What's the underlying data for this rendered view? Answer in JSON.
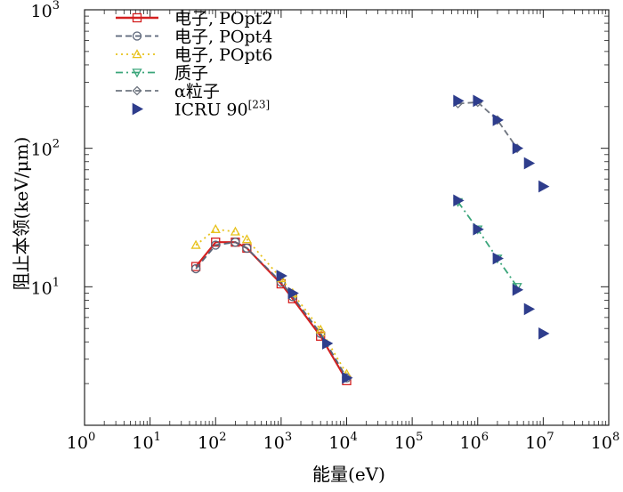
{
  "chart_data": {
    "type": "line",
    "title": "",
    "xlabel": "能量(eV)",
    "ylabel": "阻止本领(keV/μm)",
    "x_scale": "log",
    "y_scale": "log",
    "xlim": [
      1,
      100000000
    ],
    "ylim": [
      1,
      1000
    ],
    "x_ticks": [
      {
        "base": "10",
        "exp": "0"
      },
      {
        "base": "10",
        "exp": "1"
      },
      {
        "base": "10",
        "exp": "2"
      },
      {
        "base": "10",
        "exp": "3"
      },
      {
        "base": "10",
        "exp": "4"
      },
      {
        "base": "10",
        "exp": "5"
      },
      {
        "base": "10",
        "exp": "6"
      },
      {
        "base": "10",
        "exp": "7"
      },
      {
        "base": "10",
        "exp": "8"
      }
    ],
    "y_ticks": [
      {
        "base": "10",
        "exp": "1"
      },
      {
        "base": "10",
        "exp": "2"
      },
      {
        "base": "10",
        "exp": "3"
      }
    ],
    "grid": false,
    "legend_position": "top-left",
    "series": [
      {
        "name": "电子, POpt2",
        "color": "#d42020",
        "marker": "square",
        "dash": "solid",
        "x": [
          50,
          100,
          200,
          300,
          1000,
          1500,
          4000,
          10000
        ],
        "y": [
          14,
          21,
          21,
          19,
          10.5,
          8.2,
          4.4,
          2.1
        ]
      },
      {
        "name": "电子, POpt4",
        "color": "#5a6478",
        "marker": "circle",
        "dash": "dashed",
        "x": [
          50,
          100,
          200,
          300,
          1000,
          1500,
          4000,
          10000
        ],
        "y": [
          13.5,
          20,
          21,
          19,
          10.8,
          8.5,
          4.6,
          2.2
        ]
      },
      {
        "name": "电子, POpt6",
        "color": "#e8c21c",
        "marker": "triangle-up",
        "dash": "dotted",
        "x": [
          50,
          100,
          200,
          300,
          1000,
          1500,
          4000,
          10000
        ],
        "y": [
          20,
          26,
          25,
          22,
          11.5,
          9,
          4.9,
          2.35
        ]
      },
      {
        "name": "质子",
        "color": "#3aa57a",
        "marker": "triangle-down",
        "dash": "dashdot",
        "x": [
          500000,
          1000000,
          2000000,
          4000000
        ],
        "y": [
          41,
          26,
          16,
          10
        ]
      },
      {
        "name": "α粒子",
        "color": "#6f7580",
        "marker": "diamond",
        "dash": "dashed",
        "x": [
          500000,
          1000000,
          2000000,
          4000000
        ],
        "y": [
          210,
          215,
          160,
          100
        ]
      },
      {
        "name": "ICRU 90",
        "legend_ref": "[23]",
        "color": "#2e3d8c",
        "marker": "triangle-right",
        "dash": "none",
        "x": [
          10000,
          5000,
          1500,
          1000,
          500000,
          1000000,
          2000000,
          4000000,
          6000000,
          10000000,
          500000,
          1000000,
          2000000,
          4000000,
          6000000,
          10000000
        ],
        "y": [
          2.2,
          3.9,
          9,
          12,
          220,
          220,
          160,
          100,
          78,
          53,
          42,
          26,
          16,
          9.5,
          6.9,
          4.6
        ]
      }
    ]
  }
}
